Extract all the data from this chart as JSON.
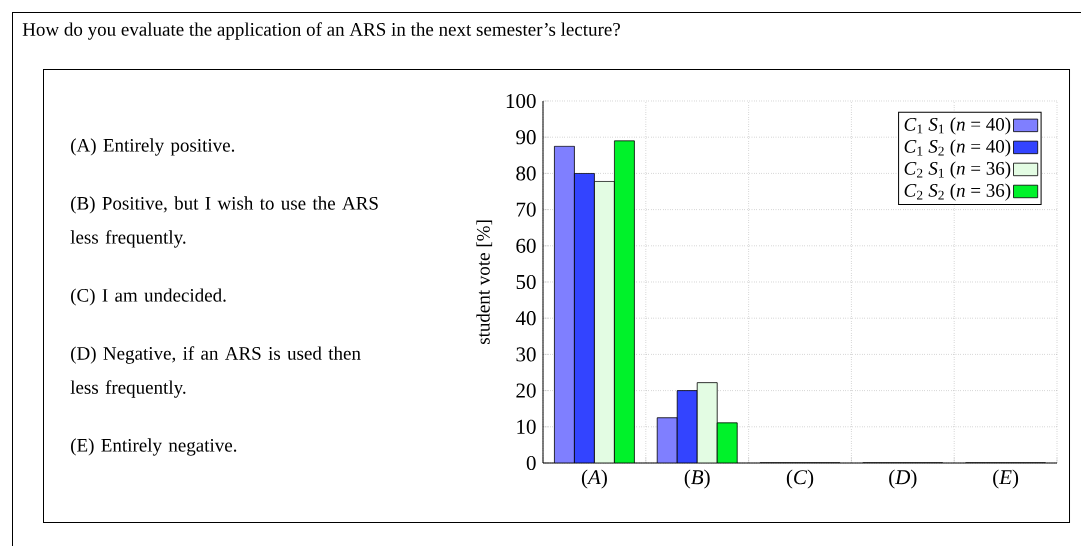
{
  "chart_data": {
    "type": "bar",
    "title": "How do you evaluate the application of an ARS in the next semester’s lecture?",
    "ylabel": "student vote [%]",
    "categories": [
      "(*A*)",
      "(*B*)",
      "(*C*)",
      "(*D*)",
      "(*E*)"
    ],
    "series": [
      {
        "name": "*C*$_{1}$ *S*$_{1}$ (*n* = 40)",
        "color": "#7f7fff",
        "values": [
          87.5,
          12.5,
          0,
          0,
          0
        ]
      },
      {
        "name": "*C*$_{1}$ *S*$_{2}$ (*n* = 40)",
        "color": "#3344ff",
        "values": [
          80,
          20,
          0,
          0,
          0
        ]
      },
      {
        "name": "*C*$_{2}$ *S*$_{1}$ (*n* = 36)",
        "color": "#e3fce3",
        "values": [
          77.8,
          22.2,
          0,
          0,
          0
        ]
      },
      {
        "name": "*C*$_{2}$ *S*$_{2}$ (*n* = 36)",
        "color": "#00f22a",
        "values": [
          89,
          11.1,
          0,
          0,
          0
        ]
      }
    ],
    "ylim": [
      0,
      100
    ],
    "yticks": [
      0,
      10,
      20,
      30,
      40,
      50,
      60,
      70,
      80,
      90,
      100
    ],
    "grid": true,
    "legend": "top right",
    "annotations": [
      "(A) Entirely positive.",
      "(B) Positive, but I wish to use the ARS less frequently.",
      "(C) I am undecided.",
      "(D) Negative, if an ARS is used then less frequently.",
      "(E) Entirely negative."
    ]
  }
}
